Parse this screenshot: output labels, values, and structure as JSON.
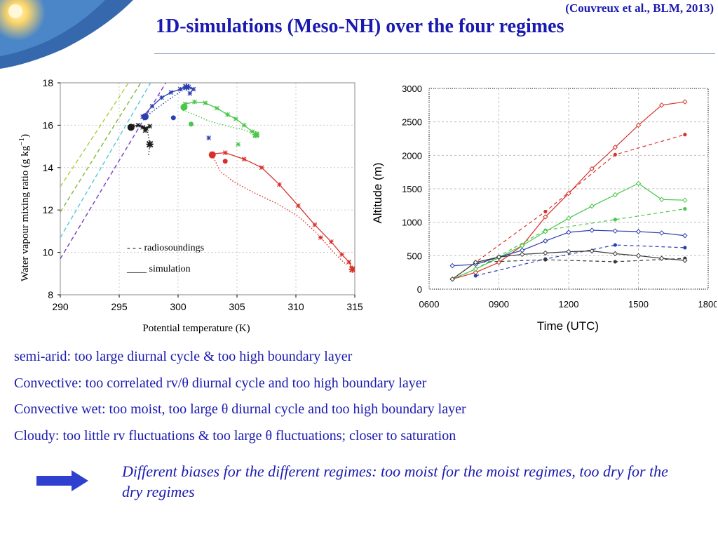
{
  "citation": "(Couvreux et al., BLM, 2013)",
  "title": "1D-simulations (Meso-NH) over the four regimes",
  "chart_data": [
    {
      "type": "line",
      "xlabel": "Potential temperature (K)",
      "ylabel": "Water vapour mixing ratio (g kg",
      "ylabel_sup": "−1",
      "ylabel_end": ")",
      "xlim": [
        290,
        315
      ],
      "ylim": [
        8,
        18
      ],
      "xticks": [
        "290",
        "295",
        "300",
        "305",
        "310",
        "315"
      ],
      "yticks": [
        "8",
        "10",
        "12",
        "14",
        "16",
        "18"
      ],
      "legend": [
        "- - - radiosoundings",
        "____ simulation"
      ],
      "saturation_lines": [
        {
          "color": "#a8cf3a",
          "points": [
            [
              290,
              13.1
            ],
            [
              296.5,
              18.6
            ]
          ]
        },
        {
          "color": "#7fb838",
          "points": [
            [
              290,
              11.9
            ],
            [
              297.5,
              18.6
            ]
          ]
        },
        {
          "color": "#52c8dc",
          "points": [
            [
              290,
              10.7
            ],
            [
              298.3,
              18.6
            ]
          ]
        },
        {
          "color": "#7a3cc8",
          "points": [
            [
              290,
              9.7
            ],
            [
              299.6,
              18.6
            ]
          ]
        }
      ],
      "series": [
        {
          "color": "#1a1a1a",
          "sim": [
            [
              296.1,
              15.95
            ],
            [
              296.6,
              16.0
            ],
            [
              297.0,
              15.9
            ],
            [
              297.3,
              15.85
            ],
            [
              297.6,
              15.95
            ],
            [
              297.2,
              15.75
            ]
          ],
          "obs": [
            [
              296.0,
              15.9
            ],
            [
              296.8,
              16.0
            ],
            [
              297.4,
              15.75
            ],
            [
              297.6,
              15.1
            ],
            [
              297.5,
              14.6
            ]
          ],
          "start": [
            296.0,
            15.9
          ],
          "end": [
            297.6,
            15.1
          ]
        },
        {
          "color": "#2b3fae",
          "sim": [
            [
              297.0,
              16.4
            ],
            [
              297.8,
              16.9
            ],
            [
              298.6,
              17.3
            ],
            [
              299.4,
              17.55
            ],
            [
              300.2,
              17.7
            ],
            [
              300.9,
              17.8
            ],
            [
              301.3,
              17.7
            ],
            [
              301.0,
              17.5
            ]
          ],
          "obs": [
            [
              297.0,
              16.3
            ],
            [
              298.2,
              16.8
            ],
            [
              299.2,
              17.2
            ],
            [
              300.0,
              17.5
            ],
            [
              300.6,
              17.75
            ],
            [
              300.9,
              17.75
            ]
          ],
          "start": [
            297.2,
            16.4
          ],
          "end": [
            300.7,
            17.8
          ],
          "extra": [
            [
              299.6,
              16.35
            ],
            [
              302.6,
              15.4
            ]
          ]
        },
        {
          "color": "#4ac64a",
          "sim": [
            [
              300.6,
              17.0
            ],
            [
              301.4,
              17.1
            ],
            [
              302.3,
              17.05
            ],
            [
              303.3,
              16.8
            ],
            [
              304.2,
              16.5
            ],
            [
              304.9,
              16.3
            ],
            [
              305.6,
              16.0
            ],
            [
              306.3,
              15.7
            ],
            [
              306.7,
              15.55
            ]
          ],
          "obs": [
            [
              300.4,
              16.7
            ],
            [
              301.4,
              16.5
            ],
            [
              302.6,
              16.2
            ],
            [
              303.6,
              16.05
            ],
            [
              304.6,
              15.9
            ],
            [
              305.5,
              15.8
            ],
            [
              306.2,
              15.65
            ]
          ],
          "start": [
            300.5,
            16.85
          ],
          "end": [
            306.6,
            15.55
          ],
          "extra": [
            [
              301.1,
              16.05
            ],
            [
              305.1,
              15.1
            ]
          ]
        },
        {
          "color": "#d8312a",
          "sim": [
            [
              302.9,
              14.65
            ],
            [
              304.0,
              14.7
            ],
            [
              305.6,
              14.4
            ],
            [
              307.1,
              14.0
            ],
            [
              308.6,
              13.2
            ],
            [
              310.2,
              12.2
            ],
            [
              311.6,
              11.3
            ],
            [
              313.0,
              10.5
            ],
            [
              313.9,
              9.9
            ],
            [
              314.5,
              9.55
            ],
            [
              314.8,
              9.2
            ]
          ],
          "obs": [
            [
              302.9,
              14.6
            ],
            [
              303.6,
              13.8
            ],
            [
              304.8,
              13.3
            ],
            [
              306.5,
              12.8
            ],
            [
              308.4,
              12.3
            ],
            [
              310.2,
              11.7
            ],
            [
              311.8,
              10.9
            ],
            [
              313.2,
              10.0
            ],
            [
              314.3,
              9.4
            ]
          ],
          "start": [
            302.9,
            14.6
          ],
          "end": [
            314.8,
            9.2
          ],
          "extra": [
            [
              304.0,
              14.3
            ],
            [
              312.1,
              10.7
            ]
          ]
        }
      ]
    },
    {
      "type": "line",
      "xlabel": "Time (UTC)",
      "ylabel": "Altitude (m)",
      "xlim": [
        600,
        1800
      ],
      "ylim": [
        0,
        3000
      ],
      "xticks": [
        "0600",
        "0900",
        "1200",
        "1500",
        "1800"
      ],
      "yticks": [
        "0",
        "500",
        "1000",
        "1500",
        "2000",
        "2500",
        "3000"
      ],
      "series": [
        {
          "color": "#d8312a",
          "sim_x": [
            700,
            800,
            900,
            1000,
            1100,
            1200,
            1300,
            1400,
            1500,
            1600,
            1700
          ],
          "sim_y": [
            150,
            250,
            400,
            650,
            1080,
            1430,
            1800,
            2120,
            2450,
            2750,
            2800
          ],
          "obs_x": [
            700,
            1100,
            1400,
            1700
          ],
          "obs_y": [
            150,
            1160,
            2010,
            2310
          ]
        },
        {
          "color": "#4ac64a",
          "sim_x": [
            700,
            800,
            900,
            1000,
            1100,
            1200,
            1300,
            1400,
            1500,
            1600,
            1700
          ],
          "sim_y": [
            150,
            300,
            470,
            650,
            860,
            1060,
            1240,
            1410,
            1580,
            1340,
            1330
          ],
          "obs_x": [
            700,
            800,
            1100,
            1400,
            1700
          ],
          "obs_y": [
            150,
            300,
            880,
            1040,
            1200
          ]
        },
        {
          "color": "#2b3fae",
          "sim_x": [
            700,
            800,
            900,
            1000,
            1100,
            1200,
            1300,
            1400,
            1500,
            1600,
            1700
          ],
          "sim_y": [
            350,
            370,
            480,
            580,
            720,
            850,
            880,
            870,
            860,
            840,
            800
          ],
          "obs_x": [
            800,
            1100,
            1400,
            1700
          ],
          "obs_y": [
            200,
            450,
            660,
            620
          ]
        },
        {
          "color": "#3a3a3a",
          "sim_x": [
            700,
            800,
            900,
            1000,
            1100,
            1200,
            1300,
            1400,
            1500,
            1600,
            1700
          ],
          "sim_y": [
            150,
            400,
            480,
            520,
            540,
            560,
            570,
            530,
            500,
            460,
            430
          ],
          "obs_x": [
            800,
            1100,
            1400,
            1700
          ],
          "obs_y": [
            400,
            440,
            410,
            460
          ]
        }
      ]
    }
  ],
  "bullets": [
    "semi-arid: too large diurnal cycle & too high boundary layer",
    "Convective: too correlated rv/θ diurnal cycle and too high boundary layer",
    "Convective wet: too moist, too large θ diurnal cycle and too high boundary layer",
    "Cloudy: too little rv fluctuations & too large θ fluctuations; closer to saturation"
  ],
  "conclusion": "Different biases for the different regimes: too moist for the moist regimes, too dry for the dry regimes",
  "colors": {
    "text": "#1a1ab0",
    "arrow": "#2f3fd0",
    "logo": "#3a6fb0"
  }
}
